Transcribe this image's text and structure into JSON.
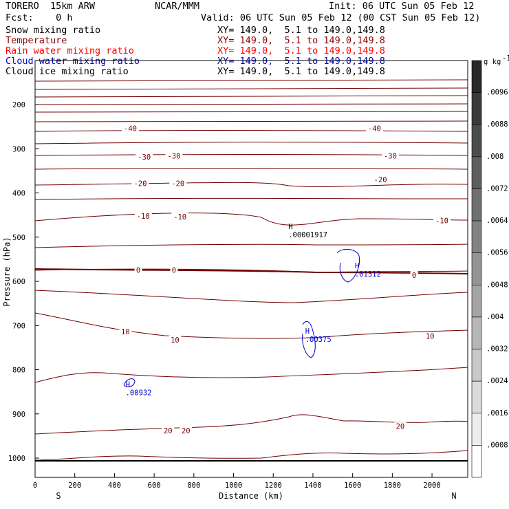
{
  "header": {
    "model": "TORERO  15km ARW",
    "org": "NCAR/MMM",
    "init": "Init: 06 UTC Sun 05 Feb 12",
    "fcst": "Fcst:    0 h",
    "valid": "Valid: 06 UTC Sun 05 Feb 12 (00 CST Sun 05 Feb 12)"
  },
  "fields": [
    {
      "name": "Snow mixing ratio",
      "xy": "XY= 149.0,  5.1 to 149.0,149.8",
      "color": "#000000"
    },
    {
      "name": "Temperature",
      "xy": "XY= 149.0,  5.1 to 149.0,149.8",
      "color": "#8b0000"
    },
    {
      "name": "Rain water mixing ratio",
      "xy": "XY= 149.0,  5.1 to 149.0,149.8",
      "color": "#ff0000"
    },
    {
      "name": "Cloud water mixing ratio",
      "xy": "XY= 149.0,  5.1 to 149.0,149.8",
      "color": "#0000cc"
    },
    {
      "name": "Cloud ice mixing ratio",
      "xy": "XY= 149.0,  5.1 to 149.0,149.8",
      "color": "#000000"
    }
  ],
  "chart_data": {
    "type": "contour",
    "xlabel": "Distance (km)",
    "ylabel": "Pressure (hPa)",
    "xlim": [
      0,
      2180
    ],
    "ylim": [
      1050,
      100
    ],
    "x_ticks": [
      0,
      200,
      400,
      600,
      800,
      1000,
      1200,
      1400,
      1600,
      1800,
      2000
    ],
    "y_ticks": [
      200,
      300,
      400,
      500,
      600,
      700,
      800,
      900,
      1000
    ],
    "x_end_labels": {
      "left": "S",
      "right": "N"
    },
    "temperature_labels": [
      {
        "value": "-40",
        "x": 480,
        "p": 254
      },
      {
        "value": "-40",
        "x": 1710,
        "p": 254
      },
      {
        "value": "-30",
        "x": 550,
        "p": 318
      },
      {
        "value": "-30",
        "x": 700,
        "p": 316
      },
      {
        "value": "-30",
        "x": 1790,
        "p": 316
      },
      {
        "value": "-20",
        "x": 530,
        "p": 378
      },
      {
        "value": "-20",
        "x": 720,
        "p": 378
      },
      {
        "value": "-20",
        "x": 1740,
        "p": 370
      },
      {
        "value": "-10",
        "x": 545,
        "p": 452
      },
      {
        "value": "-10",
        "x": 730,
        "p": 454
      },
      {
        "value": "-10",
        "x": 2050,
        "p": 462
      },
      {
        "value": "0",
        "x": 520,
        "p": 574
      },
      {
        "value": "0",
        "x": 700,
        "p": 574
      },
      {
        "value": "0",
        "x": 1910,
        "p": 586
      },
      {
        "value": "10",
        "x": 455,
        "p": 714
      },
      {
        "value": "10",
        "x": 705,
        "p": 732
      },
      {
        "value": "10",
        "x": 1990,
        "p": 724
      },
      {
        "value": "20",
        "x": 670,
        "p": 938
      },
      {
        "value": "20",
        "x": 760,
        "p": 938
      },
      {
        "value": "20",
        "x": 1840,
        "p": 928
      }
    ],
    "extrema": [
      {
        "symbol": "H",
        "value": ".00001917",
        "x": 1290,
        "p": 494,
        "color": "#000000"
      },
      {
        "symbol": "H",
        "value": ".01312",
        "x": 1625,
        "p": 583,
        "color": "#0000cc"
      },
      {
        "symbol": "H",
        "value": ".00375",
        "x": 1375,
        "p": 731,
        "color": "#0000cc"
      },
      {
        "symbol": "H",
        "value": ".00932",
        "x": 470,
        "p": 851,
        "color": "#0000cc"
      }
    ],
    "colorbar": {
      "unit": "g kg",
      "unit_exp": "-1",
      "labels": [
        ".0096",
        ".0088",
        ".008",
        ".0072",
        ".0064",
        ".0056",
        ".0048",
        ".004",
        ".0032",
        ".0024",
        ".0016",
        ".0008"
      ]
    }
  }
}
